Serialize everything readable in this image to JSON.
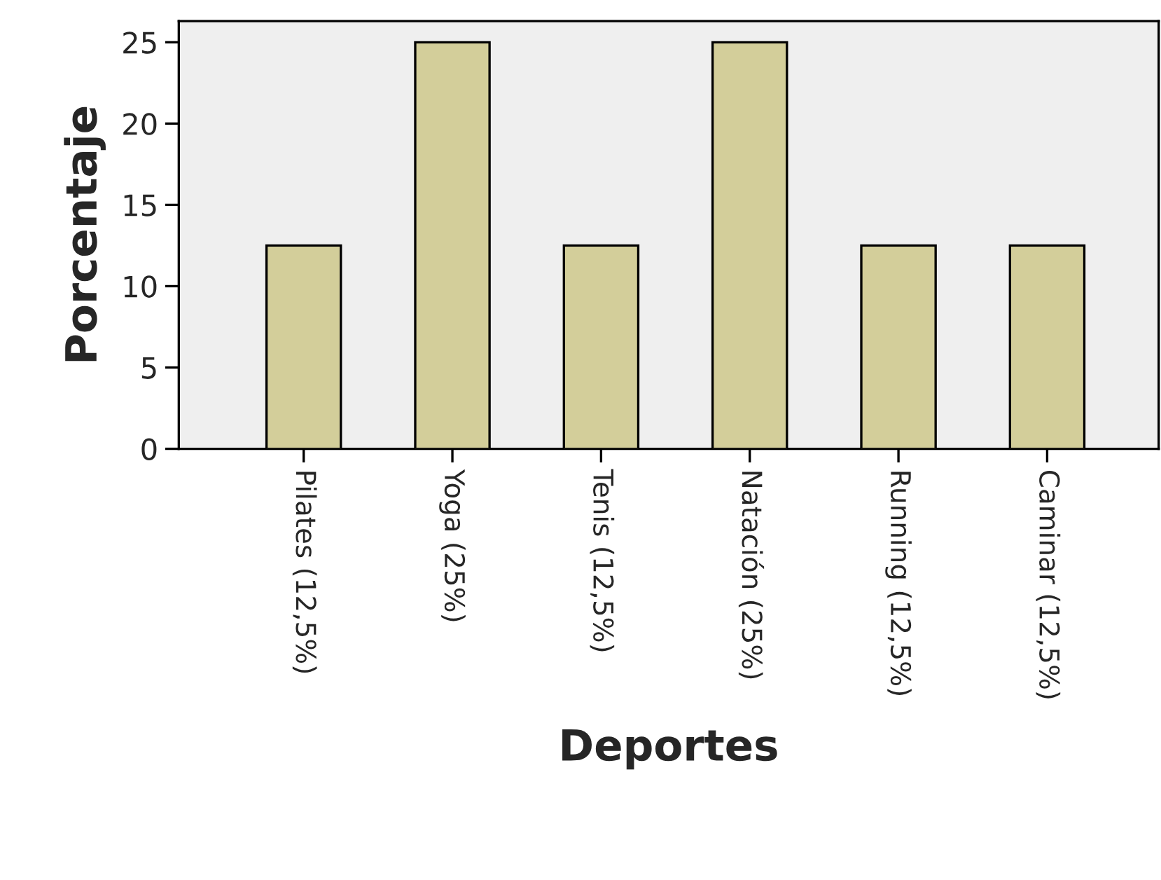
{
  "chart_data": {
    "type": "bar",
    "xlabel": "Deportes",
    "ylabel": "Porcentaje",
    "categories": [
      "Pilates (12,5%)",
      "Yoga (25%)",
      "Tenis (12,5%)",
      "Natación (25%)",
      "Running (12,5%)",
      "Caminar (12,5%)"
    ],
    "values": [
      12.5,
      25,
      12.5,
      25,
      12.5,
      12.5
    ],
    "color": "#d3ce9a",
    "ylim": [
      0,
      26.3
    ],
    "yticks": [
      0,
      5,
      10,
      15,
      20,
      25
    ],
    "grid": false,
    "legend": false
  }
}
